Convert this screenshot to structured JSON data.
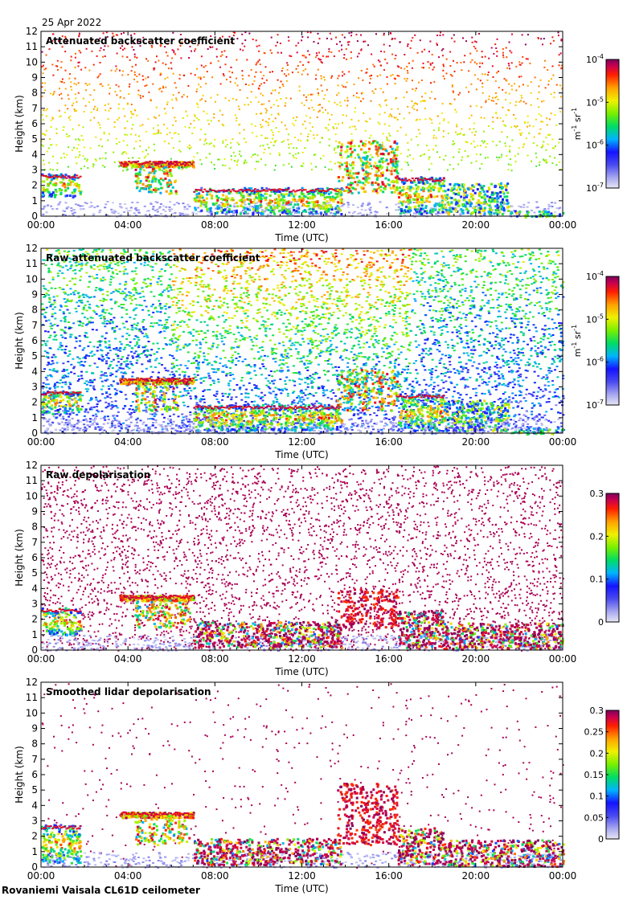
{
  "date": "25 Apr 2022",
  "footer": "Rovaniemi Vaisala CL61D ceilometer",
  "chart_data": [
    {
      "type": "heatmap",
      "title": "Attenuated backscatter coefficient",
      "xlabel": "Time (UTC)",
      "ylabel": "Height (km)",
      "xticks": [
        "00:00",
        "04:00",
        "08:00",
        "12:00",
        "16:00",
        "20:00",
        "00:00"
      ],
      "yticks": [
        "0",
        "1",
        "2",
        "3",
        "4",
        "5",
        "6",
        "7",
        "8",
        "9",
        "10",
        "11",
        "12"
      ],
      "ylim": [
        0,
        12
      ],
      "xlim_hours": [
        0,
        24
      ],
      "colorbar": {
        "scale": "log",
        "min": "1e-7",
        "max": "1e-4",
        "ticks": [
          {
            "base": "10",
            "exp": "-4"
          },
          {
            "base": "10",
            "exp": "-5"
          },
          {
            "base": "10",
            "exp": "-6"
          },
          {
            "base": "10",
            "exp": "-7"
          }
        ],
        "unit_main": [
          "m",
          "sr"
        ],
        "unit_exp": [
          "-1",
          "-1"
        ]
      },
      "noise": "sparse",
      "features": [
        {
          "t0": 0.0,
          "t1": 1.8,
          "h0": 1.3,
          "h1": 2.8,
          "shape": "cloud"
        },
        {
          "t0": 3.6,
          "t1": 7.0,
          "h0": 3.1,
          "h1": 3.7,
          "shape": "layer"
        },
        {
          "t0": 4.3,
          "t1": 6.3,
          "h0": 1.5,
          "h1": 3.3,
          "shape": "streaks"
        },
        {
          "t0": 7.0,
          "t1": 13.8,
          "h0": 0.2,
          "h1": 1.9,
          "shape": "cloud"
        },
        {
          "t0": 13.6,
          "t1": 16.4,
          "h0": 1.5,
          "h1": 5.0,
          "shape": "plume"
        },
        {
          "t0": 16.4,
          "t1": 18.5,
          "h0": 0.2,
          "h1": 2.6,
          "shape": "cloud"
        },
        {
          "t0": 18.5,
          "t1": 21.5,
          "h0": 0.2,
          "h1": 2.2,
          "shape": "low"
        },
        {
          "t0": 21.5,
          "t1": 24.0,
          "h0": 0.0,
          "h1": 0.4,
          "shape": "low"
        }
      ]
    },
    {
      "type": "heatmap",
      "title": "Raw attenuated backscatter coefficient",
      "xlabel": "Time (UTC)",
      "ylabel": "Height (km)",
      "xticks": [
        "00:00",
        "04:00",
        "08:00",
        "12:00",
        "16:00",
        "20:00",
        "00:00"
      ],
      "yticks": [
        "0",
        "1",
        "2",
        "3",
        "4",
        "5",
        "6",
        "7",
        "8",
        "9",
        "10",
        "11",
        "12"
      ],
      "ylim": [
        0,
        12
      ],
      "xlim_hours": [
        0,
        24
      ],
      "colorbar": {
        "scale": "log",
        "min": "1e-7",
        "max": "1e-4",
        "ticks": [
          {
            "base": "10",
            "exp": "-4"
          },
          {
            "base": "10",
            "exp": "-5"
          },
          {
            "base": "10",
            "exp": "-6"
          },
          {
            "base": "10",
            "exp": "-7"
          }
        ],
        "unit_main": [
          "m",
          "sr"
        ],
        "unit_exp": [
          "-1",
          "-1"
        ]
      },
      "noise": "dense",
      "features": [
        {
          "t0": 0.0,
          "t1": 1.8,
          "h0": 1.3,
          "h1": 2.8,
          "shape": "cloud"
        },
        {
          "t0": 3.6,
          "t1": 7.0,
          "h0": 3.1,
          "h1": 3.7,
          "shape": "layer"
        },
        {
          "t0": 4.3,
          "t1": 6.3,
          "h0": 1.5,
          "h1": 3.3,
          "shape": "streaks"
        },
        {
          "t0": 7.0,
          "t1": 13.8,
          "h0": 0.2,
          "h1": 1.9,
          "shape": "cloud"
        },
        {
          "t0": 13.6,
          "t1": 16.4,
          "h0": 1.5,
          "h1": 4.2,
          "shape": "plume"
        },
        {
          "t0": 16.4,
          "t1": 18.5,
          "h0": 0.2,
          "h1": 2.6,
          "shape": "cloud"
        },
        {
          "t0": 18.5,
          "t1": 21.5,
          "h0": 0.2,
          "h1": 2.2,
          "shape": "low"
        },
        {
          "t0": 21.5,
          "t1": 24.0,
          "h0": 0.0,
          "h1": 0.4,
          "shape": "low"
        }
      ]
    },
    {
      "type": "heatmap",
      "title": "Raw depolarisation",
      "xlabel": "Time (UTC)",
      "ylabel": "Height (km)",
      "xticks": [
        "00:00",
        "04:00",
        "08:00",
        "12:00",
        "16:00",
        "20:00",
        "00:00"
      ],
      "yticks": [
        "0",
        "1",
        "2",
        "3",
        "4",
        "5",
        "6",
        "7",
        "8",
        "9",
        "10",
        "11",
        "12"
      ],
      "ylim": [
        0,
        12
      ],
      "xlim_hours": [
        0,
        24
      ],
      "colorbar": {
        "scale": "linear",
        "min": 0,
        "max": 0.3,
        "ticks": [
          "0.3",
          "0.2",
          "0.1",
          "0"
        ]
      },
      "noise": "purple",
      "features": [
        {
          "t0": 0.0,
          "t1": 1.8,
          "h0": 1.0,
          "h1": 2.8,
          "shape": "cloud"
        },
        {
          "t0": 3.6,
          "t1": 7.0,
          "h0": 3.1,
          "h1": 3.7,
          "shape": "layer"
        },
        {
          "t0": 4.3,
          "t1": 6.8,
          "h0": 1.5,
          "h1": 3.3,
          "shape": "streaks"
        },
        {
          "t0": 7.0,
          "t1": 13.8,
          "h0": 0.2,
          "h1": 1.9,
          "shape": "depol"
        },
        {
          "t0": 13.6,
          "t1": 16.4,
          "h0": 1.5,
          "h1": 4.0,
          "shape": "depolplume"
        },
        {
          "t0": 16.4,
          "t1": 18.5,
          "h0": 0.2,
          "h1": 2.6,
          "shape": "depol"
        },
        {
          "t0": 18.5,
          "t1": 24.0,
          "h0": 0.1,
          "h1": 1.8,
          "shape": "depol"
        }
      ]
    },
    {
      "type": "heatmap",
      "title": "Smoothed lidar depolarisation",
      "xlabel": "Time (UTC)",
      "ylabel": "Height (km)",
      "xticks": [
        "00:00",
        "04:00",
        "08:00",
        "12:00",
        "16:00",
        "20:00",
        "00:00"
      ],
      "yticks": [
        "0",
        "1",
        "2",
        "3",
        "4",
        "5",
        "6",
        "7",
        "8",
        "9",
        "10",
        "11",
        "12"
      ],
      "ylim": [
        0,
        12
      ],
      "xlim_hours": [
        0,
        24
      ],
      "colorbar": {
        "scale": "linear",
        "min": 0,
        "max": 0.3,
        "ticks": [
          "0.3",
          "0.25",
          "0.2",
          "0.15",
          "0.1",
          "0.05",
          "0"
        ]
      },
      "noise": "sparsepurple",
      "features": [
        {
          "t0": 0.0,
          "t1": 1.8,
          "h0": 0.3,
          "h1": 2.8,
          "shape": "cloud"
        },
        {
          "t0": 3.6,
          "t1": 7.0,
          "h0": 3.1,
          "h1": 3.7,
          "shape": "layer"
        },
        {
          "t0": 4.3,
          "t1": 6.8,
          "h0": 1.5,
          "h1": 3.3,
          "shape": "streaks"
        },
        {
          "t0": 7.0,
          "t1": 13.8,
          "h0": 0.2,
          "h1": 1.9,
          "shape": "depol"
        },
        {
          "t0": 13.6,
          "t1": 16.4,
          "h0": 1.5,
          "h1": 5.5,
          "shape": "depolplume"
        },
        {
          "t0": 16.4,
          "t1": 18.5,
          "h0": 0.2,
          "h1": 2.6,
          "shape": "depol"
        },
        {
          "t0": 18.5,
          "t1": 24.0,
          "h0": 0.1,
          "h1": 1.8,
          "shape": "depol"
        }
      ]
    }
  ]
}
